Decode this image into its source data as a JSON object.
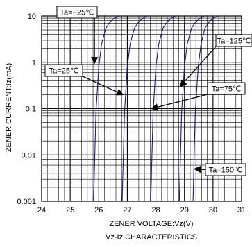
{
  "chart_data": {
    "type": "line",
    "title": "Vz-Iz CHARACTERISTICS",
    "xlabel": "ZENER VOLTAGE:Vz(V)",
    "ylabel": "ZENER CURRENT:Iz(mA)",
    "xlim": [
      24,
      31
    ],
    "ylim": [
      0.001,
      10
    ],
    "yscale": "log",
    "grid": true,
    "x_ticks": [
      "24",
      "25",
      "26",
      "27",
      "28",
      "29",
      "30",
      "31"
    ],
    "y_ticks": [
      "0.001",
      "0.01",
      "0.1",
      "1",
      "10"
    ],
    "series": [
      {
        "name": "Ta=−25℃",
        "curves": [
          {
            "x": [
              25.82,
              25.9,
              26.0,
              26.1,
              26.25,
              26.4,
              26.55,
              26.7
            ],
            "y": [
              0.001,
              0.08,
              0.8,
              2.5,
              5.5,
              7.5,
              9.0,
              10
            ]
          }
        ]
      },
      {
        "name": "Ta=25℃",
        "curves": [
          {
            "x": [
              26.82,
              26.9,
              27.0,
              27.1,
              27.25,
              27.4,
              27.55,
              27.7
            ],
            "y": [
              0.001,
              0.08,
              0.8,
              2.5,
              5.5,
              7.5,
              9.0,
              10
            ]
          }
        ]
      },
      {
        "name": "Ta=75℃",
        "curves": [
          {
            "x": [
              27.82,
              27.9,
              28.0,
              28.1,
              28.25,
              28.4,
              28.55,
              28.7
            ],
            "y": [
              0.001,
              0.08,
              0.8,
              2.5,
              5.5,
              7.5,
              9.0,
              10
            ]
          }
        ]
      },
      {
        "name": "Ta=125℃",
        "curves": [
          {
            "x": [
              28.82,
              28.9,
              29.0,
              29.1,
              29.25,
              29.4,
              29.55,
              29.7
            ],
            "y": [
              0.001,
              0.08,
              0.8,
              2.5,
              5.5,
              7.5,
              9.0,
              10
            ]
          }
        ]
      },
      {
        "name": "Ta=150℃",
        "curves": [
          {
            "x": [
              29.3,
              29.38,
              29.48,
              29.58,
              29.72,
              29.87,
              30.02,
              30.17
            ],
            "y": [
              0.001,
              0.08,
              0.8,
              2.5,
              5.5,
              7.5,
              9.0,
              10
            ]
          }
        ]
      }
    ],
    "annotations": [
      {
        "text": "Ta=−25℃",
        "arrow_to": [
          25.85,
          0.95
        ]
      },
      {
        "text": "Ta=25℃",
        "arrow_to": [
          26.85,
          0.2
        ]
      },
      {
        "text": "Ta=75℃",
        "arrow_to": [
          27.85,
          0.1
        ]
      },
      {
        "text": "Ta=125℃",
        "arrow_to": [
          28.85,
          0.3
        ]
      },
      {
        "text": "Ta=150℃",
        "arrow_to": [
          29.35,
          0.005
        ]
      }
    ],
    "colors": {
      "curve": "#1a1a7a",
      "grid": "#000000",
      "annotation_box": "#ffffff"
    }
  }
}
